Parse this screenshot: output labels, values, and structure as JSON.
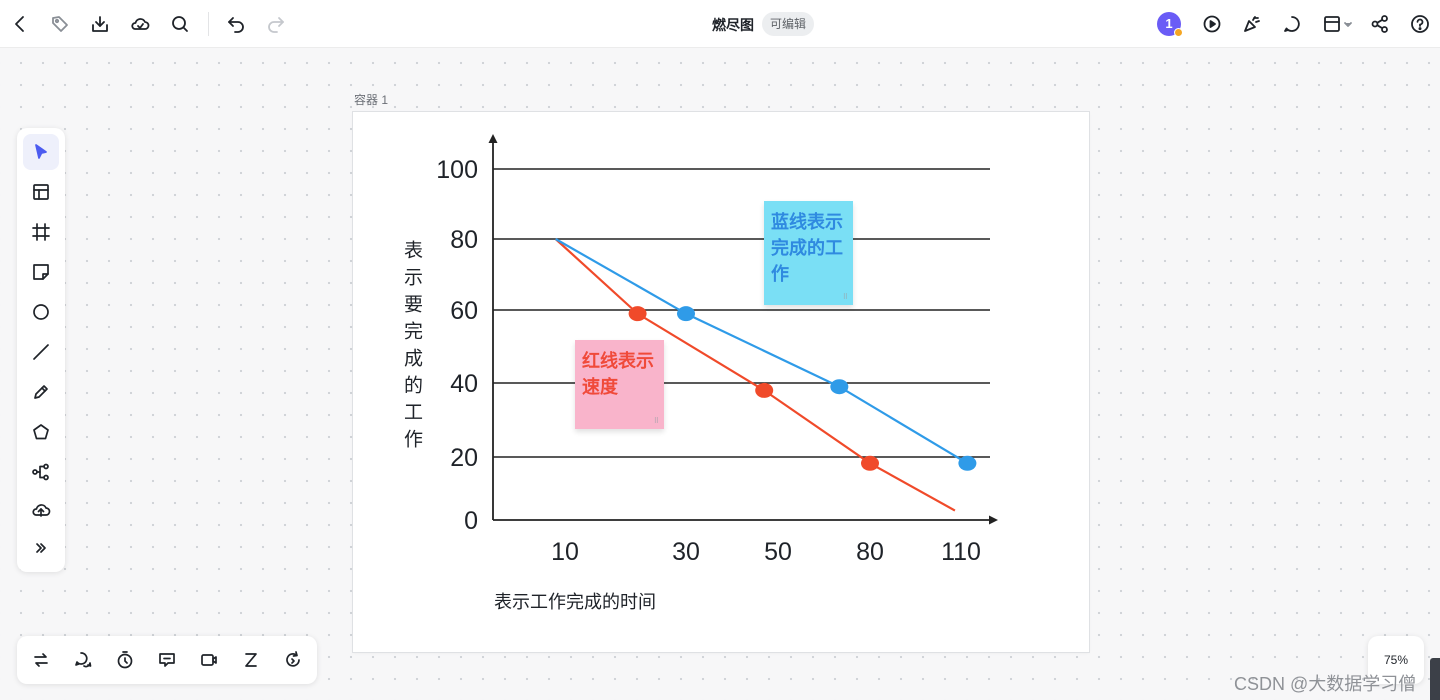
{
  "header": {
    "title": "燃尽图",
    "edit_badge": "可编辑",
    "avatar_label": "1",
    "left_icons": [
      "back-icon",
      "tag-icon",
      "download-icon",
      "cloud-icon",
      "search-icon",
      "undo-icon",
      "redo-icon"
    ],
    "right_icons": [
      "present-icon",
      "celebrate-icon",
      "comment-icon",
      "layout-icon",
      "share-icon",
      "help-icon"
    ]
  },
  "frame": {
    "label": "容器 1"
  },
  "sticky_notes": {
    "blue": {
      "text": "蓝线表示完成的工作",
      "color": "#7adff5",
      "text_color": "#2f8ae0"
    },
    "pink": {
      "text": "红线表示速度",
      "color": "#f9b4cb",
      "text_color": "#f04a3a"
    }
  },
  "chart_data": {
    "type": "line",
    "x_tick_labels": [
      "10",
      "30",
      "50",
      "80",
      "110"
    ],
    "y_tick_labels": [
      "100",
      "80",
      "60",
      "40",
      "20",
      "0"
    ],
    "xlabel": "表示工作完成的时间",
    "ylabel": "表示要完成的工作",
    "grid": true,
    "series": [
      {
        "color": "#f04a2a",
        "points": [
          [
            8,
            80
          ],
          [
            22,
            59
          ],
          [
            47,
            38
          ],
          [
            80,
            18
          ],
          [
            108,
            3
          ]
        ],
        "marker_indices": [
          1,
          2,
          3
        ]
      },
      {
        "color": "#2f9be8",
        "points": [
          [
            8,
            80
          ],
          [
            30,
            59
          ],
          [
            70,
            39
          ],
          [
            112,
            18
          ]
        ],
        "marker_indices": [
          1,
          2,
          3
        ]
      }
    ]
  },
  "left_toolbar": {
    "tools": [
      "select-icon",
      "template-icon",
      "frame-icon",
      "sticky-note-icon",
      "circle-icon",
      "line-icon",
      "pen-icon",
      "pentagon-icon",
      "mindmap-icon",
      "upload-icon",
      "more-icon"
    ]
  },
  "bottom_toolbar": {
    "tools": [
      "switch-icon",
      "chat-bubbles-icon",
      "timer-icon",
      "feedback-icon",
      "video-icon",
      "z-icon",
      "refresh-icon"
    ]
  },
  "zoom": {
    "level": "75%"
  },
  "watermark": "CSDN @大数据学习僧"
}
